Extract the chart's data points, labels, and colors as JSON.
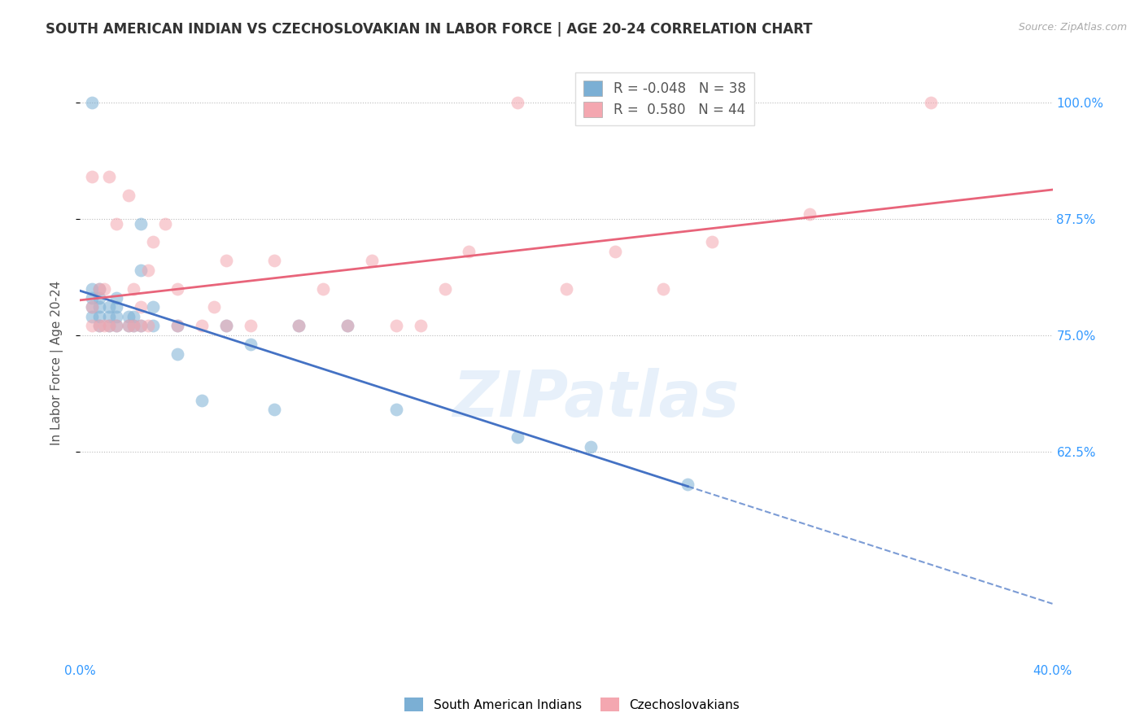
{
  "title": "SOUTH AMERICAN INDIAN VS CZECHOSLOVAKIAN IN LABOR FORCE | AGE 20-24 CORRELATION CHART",
  "source": "Source: ZipAtlas.com",
  "ylabel": "In Labor Force | Age 20-24",
  "xlim": [
    0.0,
    0.4
  ],
  "ylim": [
    0.4,
    1.04
  ],
  "yticks": [
    1.0,
    0.875,
    0.75,
    0.625
  ],
  "ytick_labels": [
    "100.0%",
    "87.5%",
    "75.0%",
    "62.5%"
  ],
  "xticks": [
    0.0,
    0.1,
    0.2,
    0.3,
    0.4
  ],
  "xtick_labels": [
    "0.0%",
    "",
    "",
    "",
    "40.0%"
  ],
  "blue_R": -0.048,
  "blue_N": 38,
  "pink_R": 0.58,
  "pink_N": 44,
  "blue_color": "#7BAFD4",
  "pink_color": "#F4A7B0",
  "blue_line_color": "#4472C4",
  "pink_line_color": "#E8647A",
  "watermark": "ZIPatlas",
  "legend_label_blue": "South American Indians",
  "legend_label_pink": "Czechoslovakians",
  "blue_scatter_x": [
    0.005,
    0.005,
    0.005,
    0.005,
    0.005,
    0.008,
    0.008,
    0.008,
    0.008,
    0.008,
    0.012,
    0.012,
    0.012,
    0.015,
    0.015,
    0.015,
    0.015,
    0.02,
    0.02,
    0.022,
    0.022,
    0.025,
    0.025,
    0.025,
    0.03,
    0.03,
    0.04,
    0.04,
    0.05,
    0.06,
    0.07,
    0.08,
    0.09,
    0.11,
    0.13,
    0.18,
    0.21,
    0.25
  ],
  "blue_scatter_y": [
    0.77,
    0.78,
    0.79,
    0.8,
    1.0,
    0.76,
    0.77,
    0.78,
    0.79,
    0.8,
    0.76,
    0.77,
    0.78,
    0.76,
    0.77,
    0.78,
    0.79,
    0.76,
    0.77,
    0.76,
    0.77,
    0.76,
    0.82,
    0.87,
    0.76,
    0.78,
    0.73,
    0.76,
    0.68,
    0.76,
    0.74,
    0.67,
    0.76,
    0.76,
    0.67,
    0.64,
    0.63,
    0.59
  ],
  "pink_scatter_x": [
    0.005,
    0.005,
    0.005,
    0.008,
    0.008,
    0.01,
    0.01,
    0.012,
    0.012,
    0.015,
    0.015,
    0.02,
    0.02,
    0.022,
    0.022,
    0.025,
    0.025,
    0.028,
    0.028,
    0.03,
    0.035,
    0.04,
    0.04,
    0.05,
    0.055,
    0.06,
    0.06,
    0.07,
    0.08,
    0.09,
    0.1,
    0.11,
    0.12,
    0.13,
    0.14,
    0.15,
    0.16,
    0.18,
    0.2,
    0.22,
    0.24,
    0.26,
    0.3,
    0.35
  ],
  "pink_scatter_y": [
    0.76,
    0.78,
    0.92,
    0.76,
    0.8,
    0.76,
    0.8,
    0.76,
    0.92,
    0.76,
    0.87,
    0.76,
    0.9,
    0.76,
    0.8,
    0.76,
    0.78,
    0.76,
    0.82,
    0.85,
    0.87,
    0.76,
    0.8,
    0.76,
    0.78,
    0.76,
    0.83,
    0.76,
    0.83,
    0.76,
    0.8,
    0.76,
    0.83,
    0.76,
    0.76,
    0.8,
    0.84,
    1.0,
    0.8,
    0.84,
    0.8,
    0.85,
    0.88,
    1.0
  ]
}
